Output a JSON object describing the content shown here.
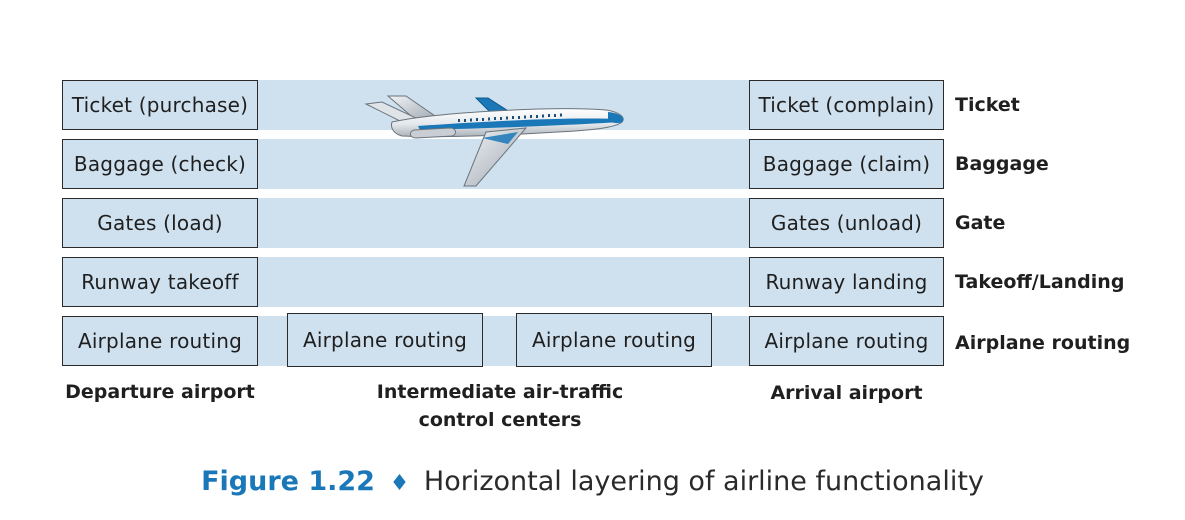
{
  "departure": {
    "layers": [
      "Ticket (purchase)",
      "Baggage (check)",
      "Gates (load)",
      "Runway takeoff",
      "Airplane routing"
    ],
    "label": "Departure airport"
  },
  "intermediate": {
    "boxes": [
      "Airplane routing",
      "Airplane routing"
    ],
    "label_line1": "Intermediate air-traffic",
    "label_line2": "control centers"
  },
  "arrival": {
    "layers": [
      "Ticket (complain)",
      "Baggage (claim)",
      "Gates (unload)",
      "Runway landing",
      "Airplane routing"
    ],
    "label": "Arrival airport"
  },
  "layer_names": [
    "Ticket",
    "Baggage",
    "Gate",
    "Takeoff/Landing",
    "Airplane routing"
  ],
  "figure": {
    "number": "Figure 1.22",
    "separator": "♦",
    "title": "Horizontal layering of airline functionality"
  },
  "colors": {
    "band": "#cfe1ef",
    "figure_accent": "#1a77b8",
    "plane_stripe": "#1a77b8"
  },
  "icons": {
    "aircraft": "airplane-icon"
  }
}
